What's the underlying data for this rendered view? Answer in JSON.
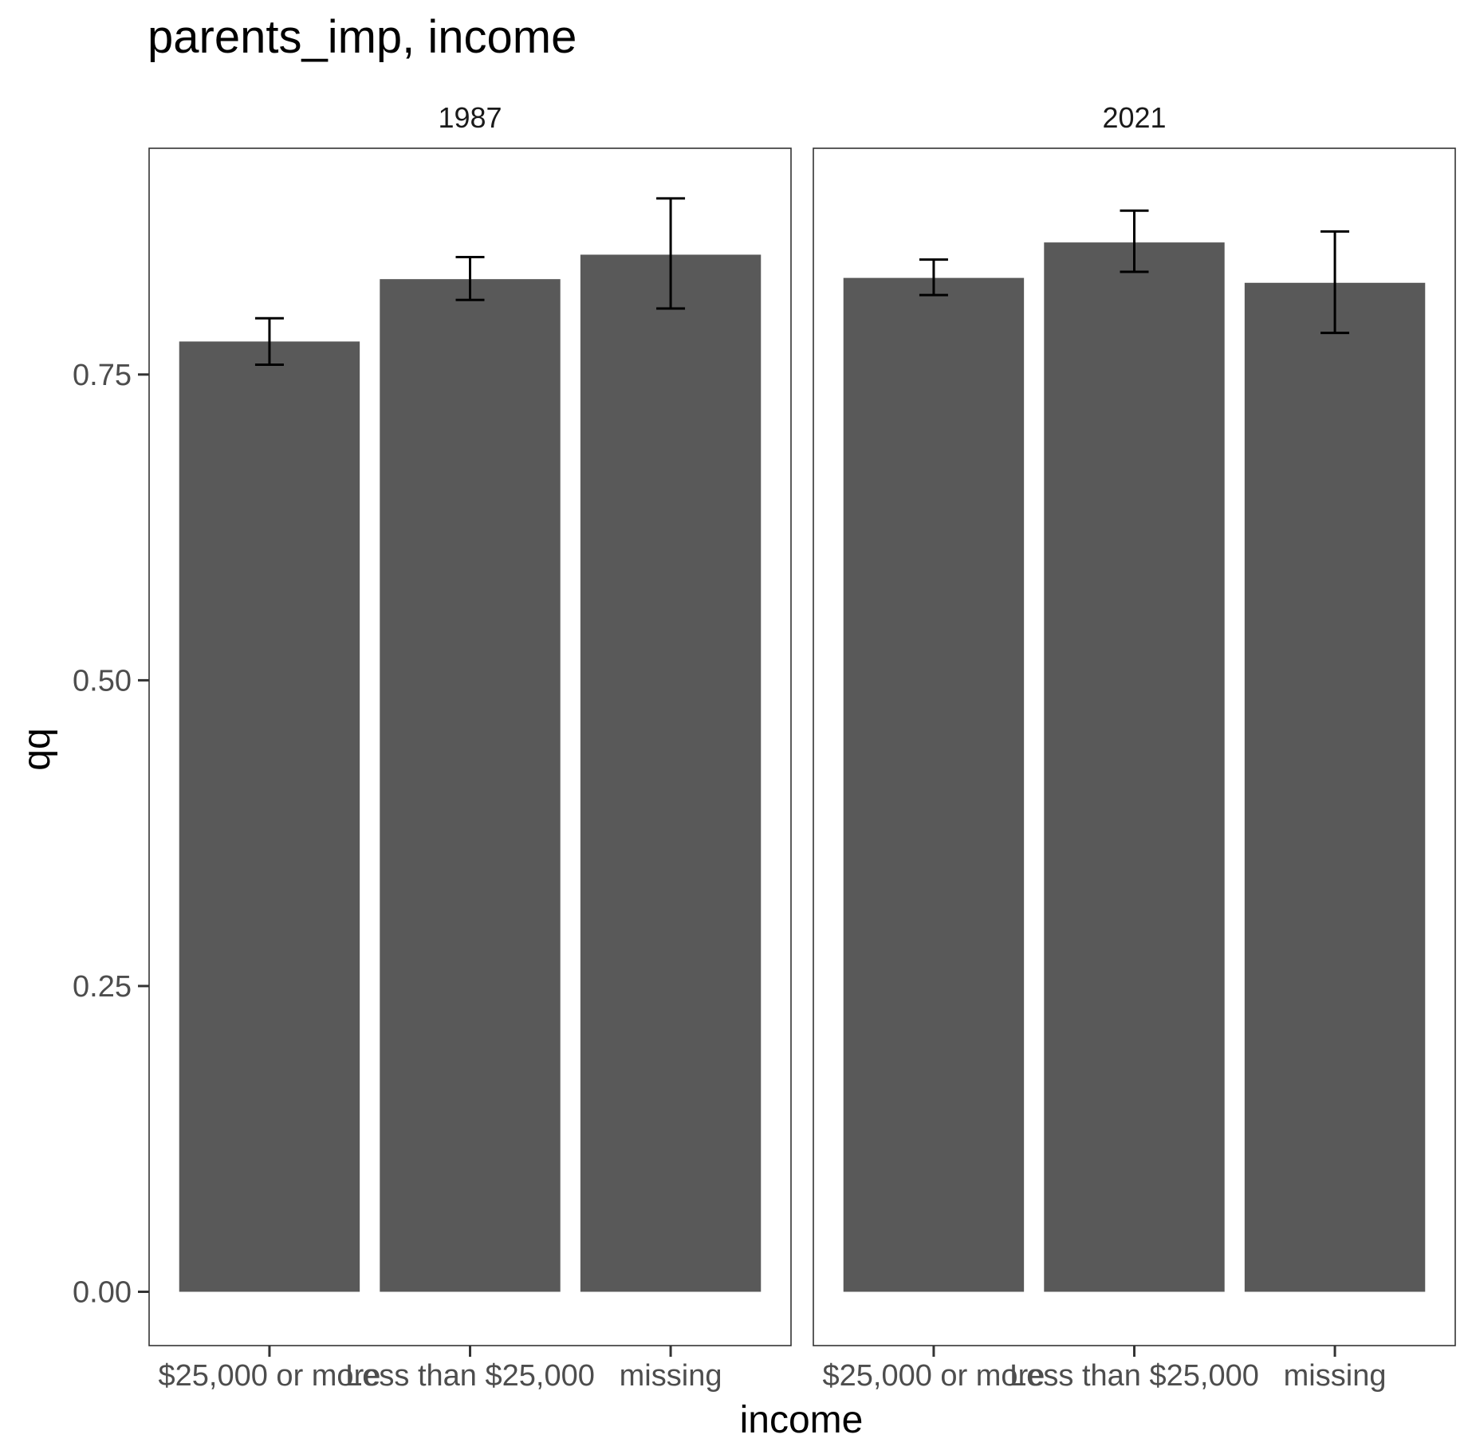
{
  "chart_data": {
    "type": "bar",
    "title": "parents_imp, income",
    "xlabel": "income",
    "ylabel": "qq",
    "ylim": [
      -0.044,
      0.935
    ],
    "yticks": [
      "0.00",
      "0.25",
      "0.50",
      "0.75"
    ],
    "grid": false,
    "legend": "none",
    "bar_color": "#595959",
    "errorbar_color": "#000000",
    "panels": [
      {
        "facet": "1987",
        "categories": [
          "$25,000 or more",
          "Less than $25,000",
          "missing"
        ],
        "values": [
          0.777,
          0.828,
          0.848
        ],
        "error_low": [
          0.758,
          0.811,
          0.804
        ],
        "error_high": [
          0.796,
          0.846,
          0.894
        ]
      },
      {
        "facet": "2021",
        "categories": [
          "$25,000 or more",
          "Less than $25,000",
          "missing"
        ],
        "values": [
          0.829,
          0.858,
          0.825
        ],
        "error_low": [
          0.815,
          0.834,
          0.784
        ],
        "error_high": [
          0.844,
          0.884,
          0.867
        ]
      }
    ]
  }
}
